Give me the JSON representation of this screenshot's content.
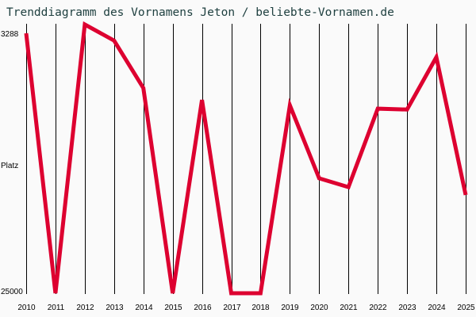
{
  "title": "Trenddiagramm des Vornamens Jeton / beliebte-Vornamen.de",
  "colors": {
    "line": "#dd0030",
    "grid": "#000000",
    "background": "#fafafa",
    "title": "#1f4040"
  },
  "chart_data": {
    "type": "line",
    "title": "Trenddiagramm des Vornamens Jeton / beliebte-Vornamen.de",
    "xlabel": "",
    "ylabel": "Platz",
    "y_inverted": true,
    "y_scale": "log",
    "ylim": [
      3288,
      25000
    ],
    "y_tick_labels": [
      "3288",
      "Platz",
      "25000"
    ],
    "grid": {
      "vertical": true,
      "horizontal": false
    },
    "legend": null,
    "categories": [
      "2010",
      "2011",
      "2012",
      "2013",
      "2014",
      "2015",
      "2016",
      "2017",
      "2018",
      "2019",
      "2020",
      "2021",
      "2022",
      "2023",
      "2024",
      "2025"
    ],
    "series": [
      {
        "name": "Jeton",
        "values": [
          3288,
          25000,
          3070,
          3480,
          5040,
          25000,
          5530,
          25000,
          25000,
          5770,
          10200,
          10920,
          5920,
          5960,
          3960,
          11610
        ]
      }
    ]
  }
}
